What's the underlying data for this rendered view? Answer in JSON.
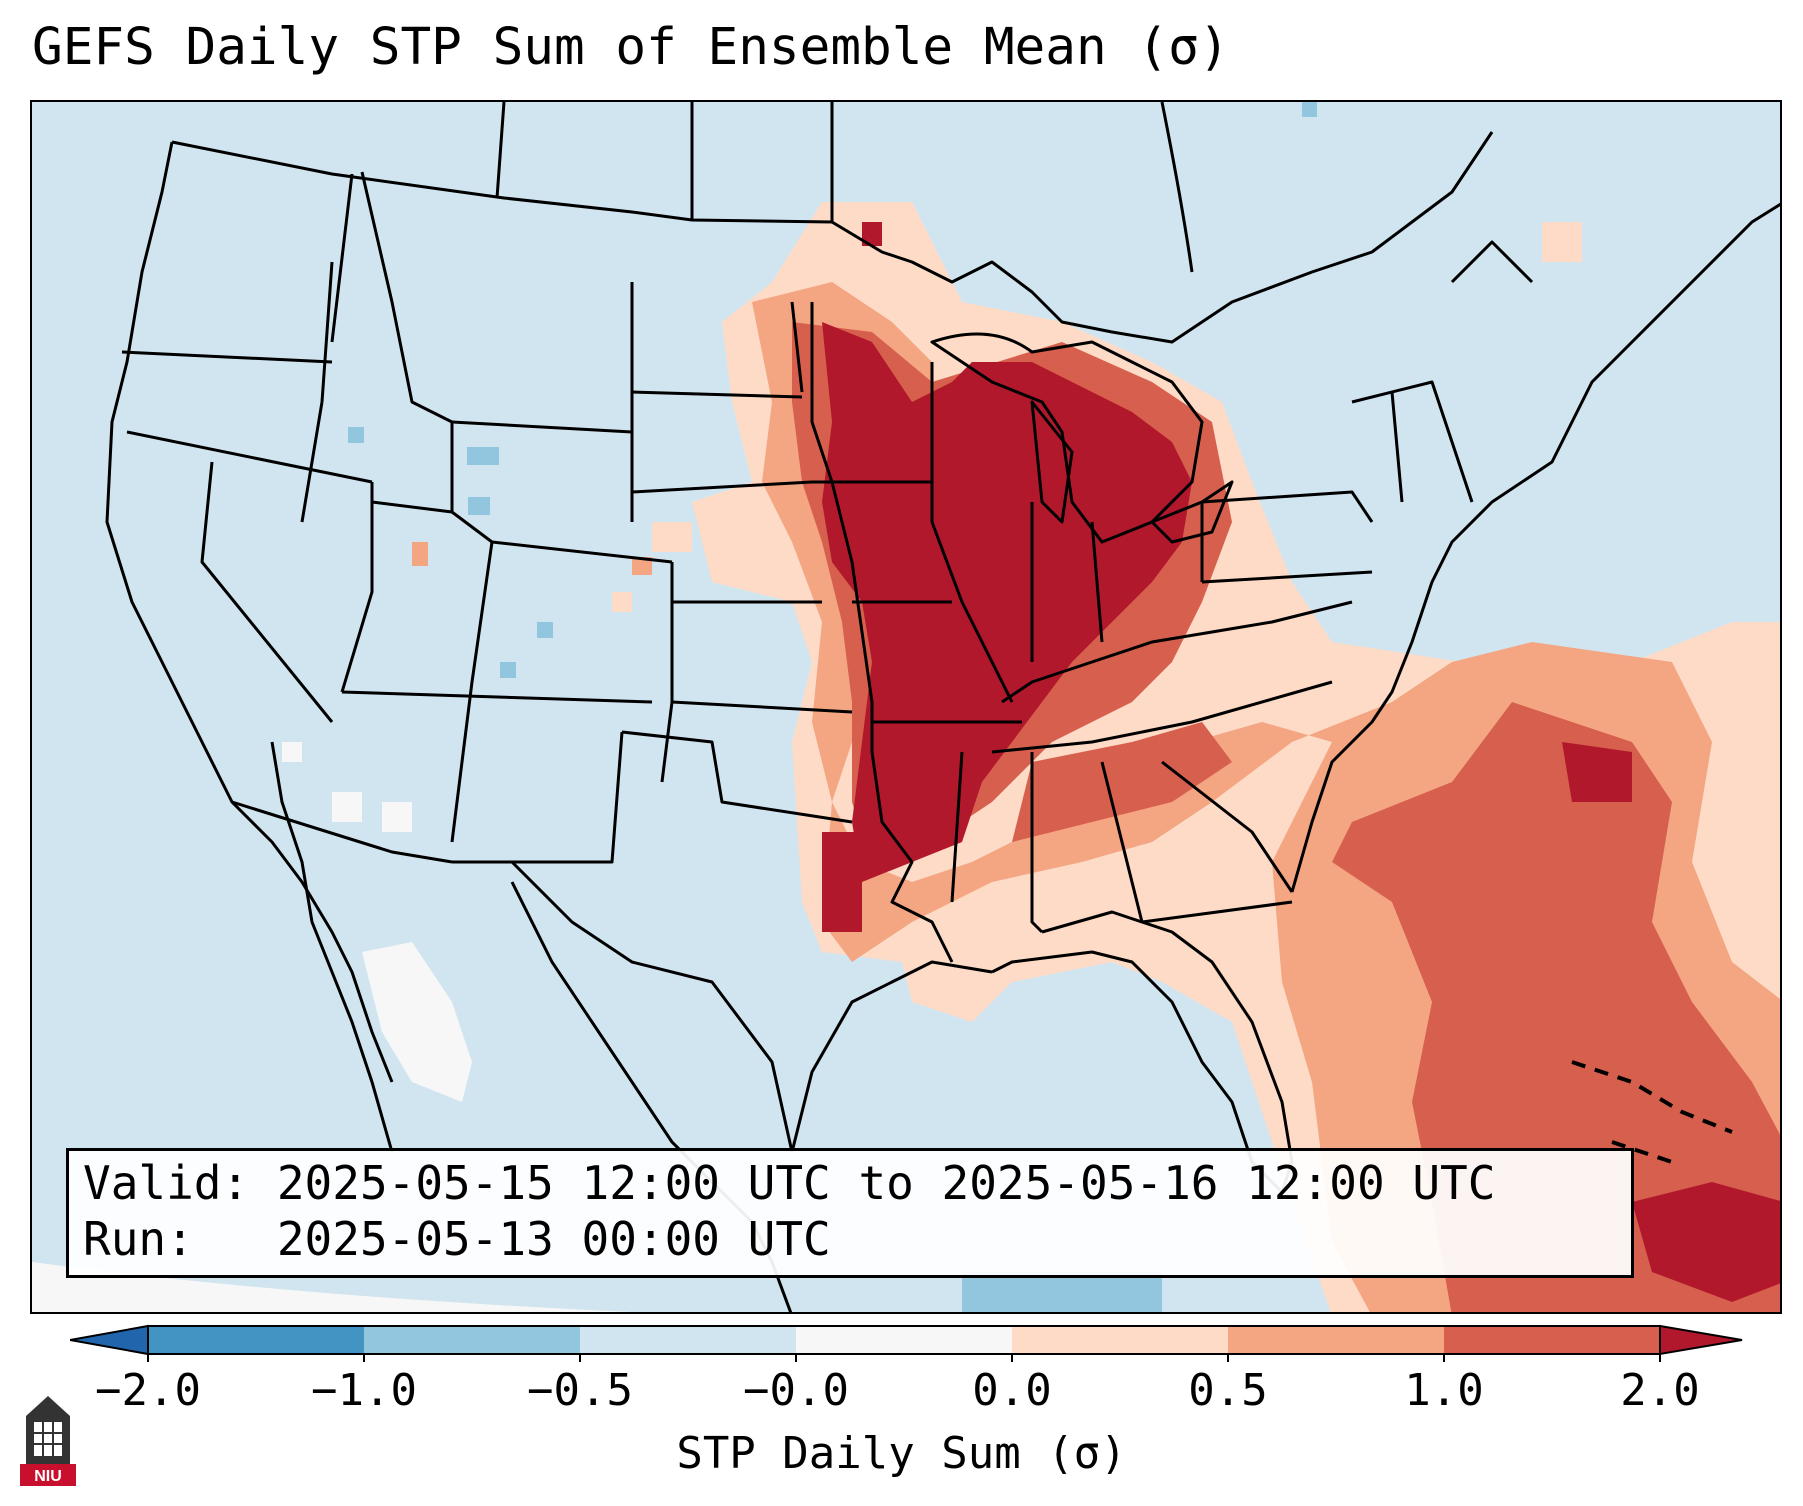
{
  "title": "GEFS Daily STP Sum of Ensemble Mean (σ)",
  "valid_line": "Valid: 2025-05-15 12:00 UTC to 2025-05-16 12:00 UTC",
  "run_line": "Run:   2025-05-13 00:00 UTC",
  "colorbar": {
    "label": "STP Daily Sum (σ)",
    "ticks": [
      "−2.0",
      "−1.0",
      "−0.5",
      "−0.0",
      "0.0",
      "0.5",
      "1.0",
      "2.0"
    ],
    "bins": [
      {
        "range": "< -2.0",
        "color": "#2166ac"
      },
      {
        "range": "-2.0 to -1.0",
        "color": "#4393c3"
      },
      {
        "range": "-1.0 to -0.5",
        "color": "#92c5de"
      },
      {
        "range": "-0.5 to -0.0",
        "color": "#d1e5f0"
      },
      {
        "range": "-0.0 to 0.0",
        "color": "#f7f7f7"
      },
      {
        "range": "0.0 to 0.5",
        "color": "#fddbc7"
      },
      {
        "range": "0.5 to 1.0",
        "color": "#f4a582"
      },
      {
        "range": "1.0 to 2.0",
        "color": "#d6604d"
      },
      {
        "range": "> 2.0",
        "color": "#b2182b"
      }
    ]
  },
  "logo_text": "NIU",
  "highlight_regions": [
    {
      "area": "Upper Midwest / Great Lakes / Mid-Mississippi Valley",
      "level": "> 2.0"
    },
    {
      "area": "Southern Plains to Tennessee Valley",
      "level": "1.0 to 2.0"
    },
    {
      "area": "Western Atlantic off Mid-Atlantic & Southeast coast",
      "level": "0.5 to 2.0"
    }
  ]
}
